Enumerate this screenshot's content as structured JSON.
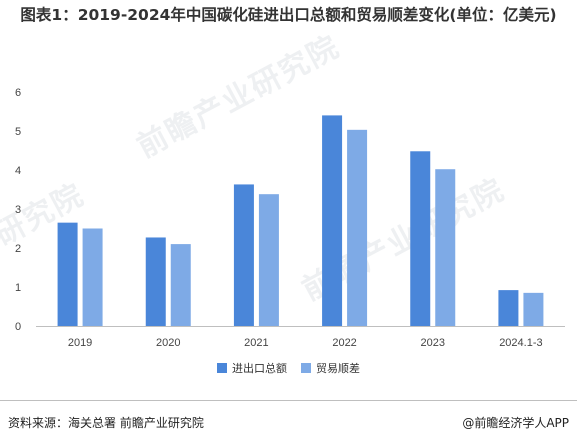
{
  "chart_data": {
    "type": "bar",
    "title": "图表1：2019-2024年中国碳化硅进出口总额和贸易顺差变化(单位：亿美元)",
    "categories": [
      "2019",
      "2020",
      "2021",
      "2022",
      "2023",
      "2024.1-3"
    ],
    "series": [
      {
        "name": "进出口总额",
        "values": [
          2.65,
          2.27,
          3.63,
          5.4,
          4.48,
          0.92
        ],
        "color": "#4a86d9"
      },
      {
        "name": "贸易顺差",
        "values": [
          2.5,
          2.1,
          3.38,
          5.03,
          4.02,
          0.85
        ],
        "color": "#7eaae6"
      }
    ],
    "ylim": [
      0,
      6
    ],
    "yticks": [
      "0",
      "1",
      "2",
      "3",
      "4",
      "5",
      "6"
    ],
    "grid": false,
    "legend_position": "bottom-center"
  },
  "footer": {
    "source": "资料来源：海关总署 前瞻产业研究院",
    "brand": "@前瞻经济学人APP"
  }
}
